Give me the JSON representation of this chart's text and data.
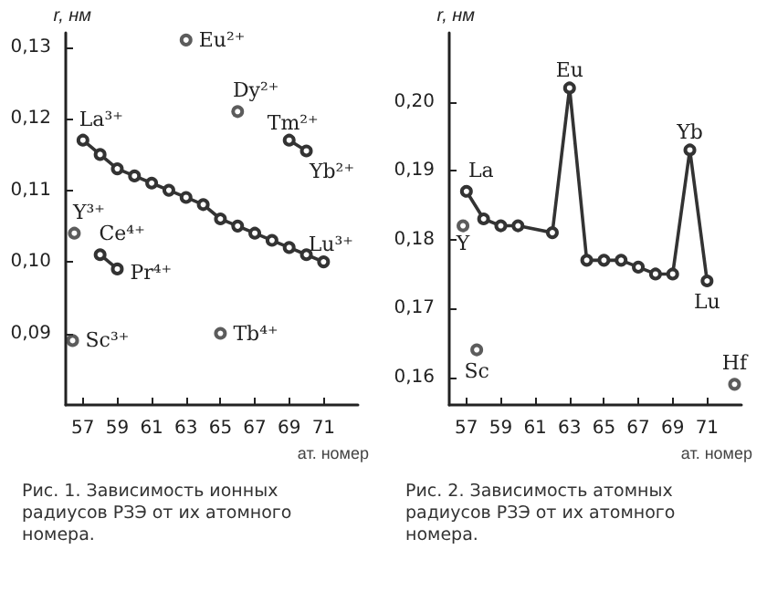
{
  "chart_data": [
    {
      "type": "line",
      "ylabel": "r, нм",
      "xlabel": "ат. номер",
      "xlim": [
        56,
        73
      ],
      "xticks": [
        57,
        59,
        61,
        63,
        65,
        67,
        69,
        71
      ],
      "ylim": [
        0.08,
        0.132
      ],
      "yticks": [
        {
          "value": 0.09,
          "label": "0,09"
        },
        {
          "value": 0.1,
          "label": "0,10"
        },
        {
          "value": 0.11,
          "label": "0,11"
        },
        {
          "value": 0.12,
          "label": "0,12"
        },
        {
          "value": 0.13,
          "label": "0,13"
        }
      ],
      "grid": false,
      "marker": "circle",
      "line_style": "solid",
      "series": [
        {
          "type": "line",
          "color": "#333333",
          "x": [
            57,
            58,
            59,
            60,
            61,
            62,
            63,
            64,
            65,
            66,
            67,
            68,
            69,
            70,
            71
          ],
          "values": [
            0.117,
            0.115,
            0.113,
            0.112,
            0.111,
            0.11,
            0.109,
            0.108,
            0.106,
            0.105,
            0.104,
            0.103,
            0.102,
            0.101,
            0.1
          ]
        },
        {
          "type": "line",
          "color": "#333333",
          "x": [
            58,
            59
          ],
          "values": [
            0.101,
            0.099
          ]
        },
        {
          "type": "line",
          "color": "#333333",
          "x": [
            69,
            70
          ],
          "values": [
            0.117,
            0.1155
          ]
        },
        {
          "type": "scatter",
          "color": "#333333",
          "x": [
            63,
            66,
            56.5,
            56.4,
            65
          ],
          "values": [
            0.131,
            0.121,
            0.104,
            0.089,
            0.09
          ]
        }
      ],
      "annotations": [
        {
          "text": "La³⁺",
          "x": 57,
          "y": 0.117
        },
        {
          "text": "Lu³⁺",
          "x": 71,
          "y": 0.1
        },
        {
          "text": "Eu²⁺",
          "x": 63,
          "y": 0.131
        },
        {
          "text": "Dy²⁺",
          "x": 66,
          "y": 0.121
        },
        {
          "text": "Tm²⁺",
          "x": 69,
          "y": 0.117
        },
        {
          "text": "Yb²⁺",
          "x": 70,
          "y": 0.1155
        },
        {
          "text": "Y³⁺",
          "x": 56.5,
          "y": 0.104
        },
        {
          "text": "Ce⁴⁺",
          "x": 58,
          "y": 0.101
        },
        {
          "text": "Pr⁴⁺",
          "x": 59,
          "y": 0.099
        },
        {
          "text": "Sc³⁺",
          "x": 56.4,
          "y": 0.089
        },
        {
          "text": "Tb⁴⁺",
          "x": 65,
          "y": 0.09
        },
        "Рис. 1. Зависимость ионных радиусов РЗЭ от их атомного номера."
      ]
    },
    {
      "type": "line",
      "ylabel": "r, нм",
      "xlabel": "ат. номер",
      "xlim": [
        56,
        73
      ],
      "xticks": [
        57,
        59,
        61,
        63,
        65,
        67,
        69,
        71
      ],
      "ylim": [
        0.156,
        0.21
      ],
      "yticks": [
        {
          "value": 0.16,
          "label": "0,16"
        },
        {
          "value": 0.17,
          "label": "0,17"
        },
        {
          "value": 0.18,
          "label": "0,18"
        },
        {
          "value": 0.19,
          "label": "0,19"
        },
        {
          "value": 0.2,
          "label": "0,20"
        }
      ],
      "grid": false,
      "marker": "circle",
      "line_style": "solid",
      "series": [
        {
          "type": "line",
          "color": "#333333",
          "x": [
            57,
            58,
            59,
            60,
            62,
            63,
            64,
            65,
            66,
            67,
            68,
            69,
            70,
            71
          ],
          "values": [
            0.187,
            0.183,
            0.182,
            0.182,
            0.181,
            0.202,
            0.177,
            0.177,
            0.177,
            0.176,
            0.175,
            0.175,
            0.193,
            0.174
          ]
        },
        {
          "type": "scatter",
          "color": "#333333",
          "x": [
            56.8,
            57.6,
            72.6
          ],
          "values": [
            0.182,
            0.164,
            0.159
          ]
        }
      ],
      "annotations": [
        {
          "text": "La",
          "x": 57,
          "y": 0.187
        },
        {
          "text": "Eu",
          "x": 63,
          "y": 0.202
        },
        {
          "text": "Yb",
          "x": 70,
          "y": 0.193
        },
        {
          "text": "Lu",
          "x": 71,
          "y": 0.174
        },
        {
          "text": "Y",
          "x": 56.8,
          "y": 0.182
        },
        {
          "text": "Sc",
          "x": 57.6,
          "y": 0.164
        },
        {
          "text": "Hf",
          "x": 72.6,
          "y": 0.159
        },
        "Рис. 2. Зависимость атомных радиусов РЗЭ от их атомного номера."
      ]
    }
  ]
}
